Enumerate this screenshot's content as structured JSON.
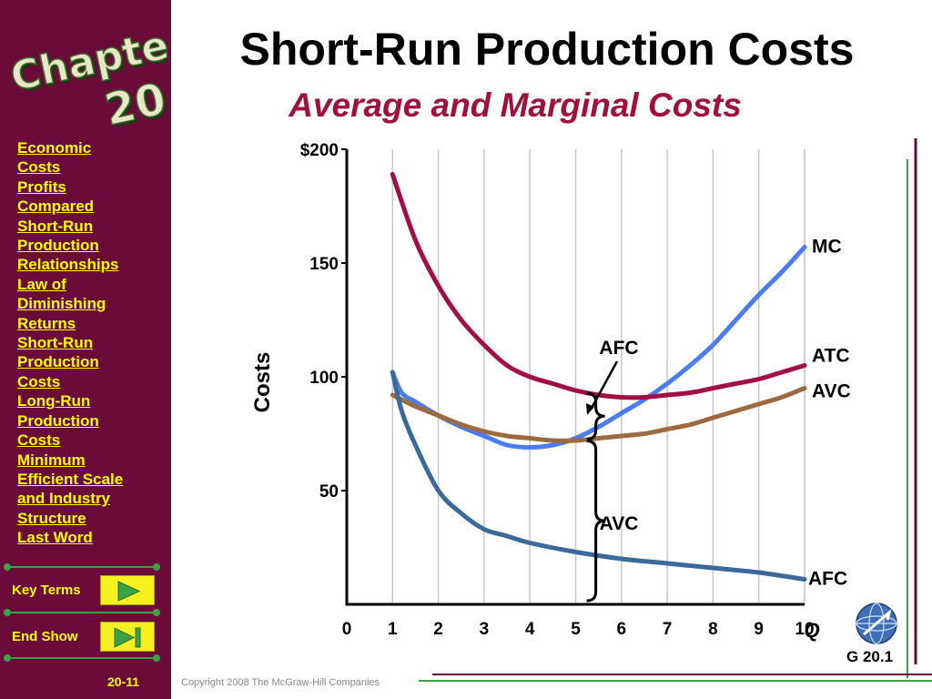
{
  "slide": {
    "chapter_word": "Chapter",
    "chapter_number": "20",
    "title": "Short-Run Production Costs",
    "subtitle": "Average and Marginal Costs",
    "page_number": "20-11",
    "copyright": "Copyright 2008 The McGraw-Hill Companies",
    "figure_id": "G 20.1",
    "colors": {
      "sidebar": "#6b0b3a",
      "link": "#ffff00",
      "subtitle": "#a0103a",
      "accent_green": "#3aa344"
    }
  },
  "sidebar": {
    "items": [
      {
        "label": "Economic\nCosts"
      },
      {
        "label": "Profits\nCompared"
      },
      {
        "label": "Short-Run\nProduction\nRelationships"
      },
      {
        "label": "Law of\nDiminishing\nReturns"
      },
      {
        "label": "Short-Run\nProduction\nCosts"
      },
      {
        "label": "Long-Run\nProduction\nCosts"
      },
      {
        "label": "Minimum\nEfficient Scale\nand Industry\nStructure"
      },
      {
        "label": "Last Word"
      }
    ],
    "key_terms_label": "Key Terms",
    "end_show_label": "End Show",
    "key_terms_icon": "play-icon",
    "end_show_icon": "end-icon"
  },
  "chart_data": {
    "type": "line",
    "ylabel": "Costs",
    "xlabel": "Q",
    "x_ticks": [
      "0",
      "1",
      "2",
      "3",
      "4",
      "5",
      "6",
      "7",
      "8",
      "9",
      "10"
    ],
    "y_ticks": [
      {
        "value": 200,
        "label": "$200"
      },
      {
        "value": 150,
        "label": "150"
      },
      {
        "value": 100,
        "label": "100"
      },
      {
        "value": 50,
        "label": "50"
      }
    ],
    "xlim": [
      0,
      10
    ],
    "ylim": [
      0,
      200
    ],
    "grid": "vertical",
    "series": [
      {
        "name": "MC",
        "color": "#4a7cf5",
        "x": [
          1,
          1.2,
          1.5,
          2,
          2.5,
          3,
          3.5,
          4,
          4.5,
          5,
          5.5,
          6,
          6.5,
          7,
          7.5,
          8,
          8.5,
          9,
          9.5,
          10
        ],
        "y": [
          102,
          93,
          89,
          83,
          78,
          74,
          70,
          69,
          70,
          73,
          78,
          84,
          90,
          97,
          105,
          114,
          125,
          136,
          146,
          157
        ]
      },
      {
        "name": "ATC",
        "color": "#a10f45",
        "x": [
          1,
          1.5,
          2,
          2.5,
          3,
          3.5,
          4,
          4.5,
          5,
          5.5,
          6,
          6.5,
          7,
          7.5,
          8,
          8.5,
          9,
          9.5,
          10
        ],
        "y": [
          189,
          160,
          140,
          125,
          114,
          105,
          100,
          97,
          94,
          92,
          91,
          91,
          92,
          93,
          95,
          97,
          99,
          102,
          105
        ]
      },
      {
        "name": "AVC",
        "color": "#9c6a3e",
        "x": [
          1,
          1.5,
          2,
          2.5,
          3,
          3.5,
          4,
          4.5,
          5,
          5.5,
          6,
          6.5,
          7,
          7.5,
          8,
          8.5,
          9,
          9.5,
          10
        ],
        "y": [
          92,
          87,
          83,
          79,
          76,
          74,
          73,
          72,
          72,
          73,
          74,
          75,
          77,
          79,
          82,
          85,
          88,
          91,
          95
        ]
      },
      {
        "name": "AFC",
        "color": "#3a6a9c",
        "x": [
          1,
          1.2,
          1.5,
          2,
          2.5,
          3,
          3.5,
          4,
          5,
          6,
          7,
          8,
          9,
          10
        ],
        "y": [
          102,
          85,
          70,
          50,
          40,
          33,
          30,
          27,
          23,
          20,
          18,
          16,
          14,
          11
        ]
      }
    ],
    "annotations": [
      {
        "label": "AFC",
        "kind": "bracket-upper",
        "x": 5.5,
        "y_range": [
          73,
          92
        ]
      },
      {
        "label": "AVC",
        "kind": "bracket-lower",
        "x": 5.5,
        "y_range": [
          0,
          73
        ]
      }
    ]
  }
}
